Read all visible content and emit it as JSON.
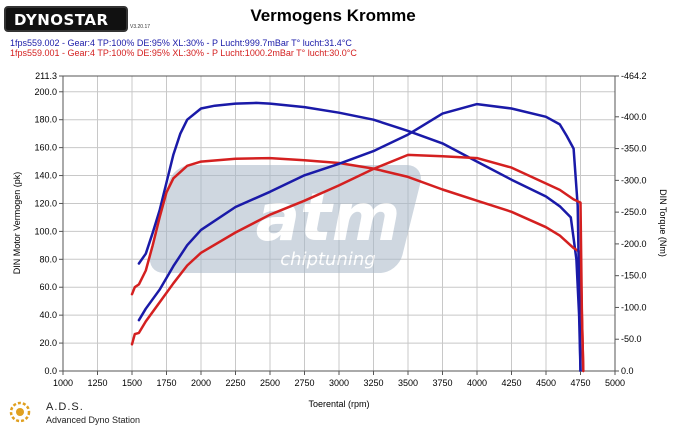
{
  "header": {
    "logo_text": "DYNOSTAR",
    "logo_subtext": "V3.20.17"
  },
  "runs": [
    "1fps559.002 - Gear:4 TP:100% DE:95% XL:30%   - P Lucht:999.7mBar T° lucht:31.4°C",
    "1fps559.001 - Gear:4 TP:100% DE:95% XL:30%   - P Lucht:1000.2mBar T° lucht:30.0°C"
  ],
  "footer": {
    "abbr": "A.D.S.",
    "full": "Advanced Dyno Station"
  },
  "watermark": {
    "brand": "atm",
    "tagline": "chiptuning"
  },
  "colors": {
    "blue": "#1a1aa8",
    "red": "#d42020",
    "grid": "#c8c8c8",
    "watermark": "#a9b8c8"
  },
  "chart_data": {
    "type": "line",
    "title": "Vermogens Kromme",
    "xlabel": "Toerental (rpm)",
    "ylabel": "DIN Motor Vermogen (pk)",
    "y2label": "DIN Torque (Nm)",
    "xlim": [
      1000,
      5000
    ],
    "ylim": [
      0.0,
      211.3
    ],
    "y2lim": [
      0.0,
      464.2
    ],
    "xticks": [
      1000,
      1250,
      1500,
      1750,
      2000,
      2250,
      2500,
      2750,
      3000,
      3250,
      3500,
      3750,
      4000,
      4250,
      4500,
      4750,
      5000
    ],
    "yticks": [
      "0.0",
      "20.0",
      "40.0",
      "60.0",
      "80.0",
      "100.0",
      "120.0",
      "140.0",
      "160.0",
      "180.0",
      "200.0",
      "211.3"
    ],
    "y2ticks": [
      "0.0",
      "-50.0",
      "-100.0",
      "-150.0",
      "-200.0",
      "-250.0",
      "-300.0",
      "-350.0",
      "-400.0",
      "-464.2"
    ],
    "grid": true,
    "series": [
      {
        "name": "1fps559.002",
        "color": "#1a1aa8",
        "axis": "power",
        "x": [
          1550,
          1600,
          1650,
          1700,
          1750,
          1800,
          1850,
          1900,
          2000,
          2100,
          2250,
          2400,
          2500,
          2750,
          3000,
          3250,
          3500,
          3750,
          4000,
          4250,
          4500,
          4600,
          4680,
          4720,
          4740,
          4750
        ],
        "y": [
          77,
          84,
          99,
          115,
          135,
          155,
          170,
          180,
          188,
          190,
          191.5,
          192,
          191.5,
          189,
          185,
          180,
          172,
          163,
          150,
          137,
          125,
          118,
          110,
          80,
          40,
          0
        ]
      },
      {
        "name": "1fps559.001",
        "color": "#d42020",
        "axis": "power",
        "x": [
          1500,
          1520,
          1550,
          1600,
          1650,
          1700,
          1750,
          1800,
          1900,
          2000,
          2250,
          2500,
          2750,
          3000,
          3250,
          3500,
          3750,
          4000,
          4250,
          4500,
          4600,
          4700,
          4750,
          4760,
          4770
        ],
        "y": [
          55,
          60,
          62,
          72,
          90,
          110,
          128,
          138,
          147,
          150,
          152,
          152.5,
          151,
          149,
          145,
          139,
          130,
          122,
          114,
          103,
          97,
          88,
          85,
          40,
          0
        ]
      },
      {
        "name": "1fps559.002",
        "color": "#1a1aa8",
        "axis": "torque",
        "x": [
          1550,
          1600,
          1700,
          1800,
          1900,
          2000,
          2250,
          2500,
          2750,
          3000,
          3250,
          3500,
          3750,
          4000,
          4250,
          4500,
          4600,
          4650,
          4700,
          4730,
          4750
        ],
        "y": [
          80,
          98,
          128,
          165,
          198,
          222,
          258,
          282,
          308,
          326,
          346,
          372,
          405,
          420,
          413,
          400,
          388,
          370,
          350,
          260,
          0
        ]
      },
      {
        "name": "1fps559.001",
        "color": "#d42020",
        "axis": "torque",
        "x": [
          1500,
          1520,
          1550,
          1600,
          1700,
          1800,
          1900,
          2000,
          2250,
          2500,
          2750,
          3000,
          3250,
          3500,
          3750,
          4000,
          4250,
          4500,
          4600,
          4700,
          4750,
          4760,
          4770
        ],
        "y": [
          42,
          58,
          60,
          78,
          108,
          138,
          166,
          186,
          218,
          246,
          268,
          292,
          318,
          340,
          338,
          335,
          320,
          295,
          285,
          270,
          265,
          90,
          0
        ]
      }
    ]
  }
}
